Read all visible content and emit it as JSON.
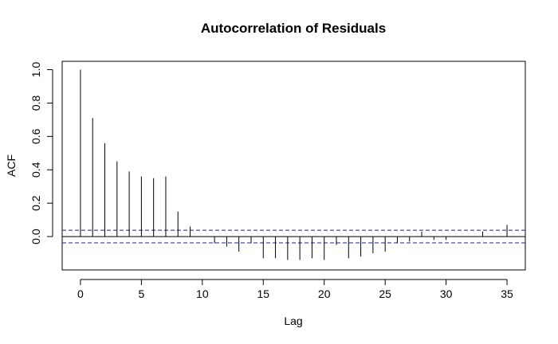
{
  "chart_data": {
    "type": "bar",
    "title": "Autocorrelation of Residuals",
    "xlabel": "Lag",
    "ylabel": "ACF",
    "xlim": [
      -1.5,
      36.5
    ],
    "ylim": [
      -0.2,
      1.05
    ],
    "x_ticks": [
      0,
      5,
      10,
      15,
      20,
      25,
      30,
      35
    ],
    "y_ticks": [
      0.0,
      0.2,
      0.4,
      0.6,
      0.8,
      1.0
    ],
    "y_tick_labels": [
      "0.0",
      "0.2",
      "0.4",
      "0.6",
      "0.8",
      "1.0"
    ],
    "confidence_bound": 0.038,
    "lags": [
      0,
      1,
      2,
      3,
      4,
      5,
      6,
      7,
      8,
      9,
      10,
      11,
      12,
      13,
      14,
      15,
      16,
      17,
      18,
      19,
      20,
      21,
      22,
      23,
      24,
      25,
      26,
      27,
      28,
      29,
      30,
      31,
      32,
      33,
      34,
      35
    ],
    "values": [
      1.0,
      0.71,
      0.56,
      0.45,
      0.39,
      0.36,
      0.35,
      0.36,
      0.15,
      0.06,
      0.0,
      -0.04,
      -0.06,
      -0.09,
      -0.04,
      -0.13,
      -0.13,
      -0.14,
      -0.14,
      -0.13,
      -0.14,
      -0.05,
      -0.13,
      -0.12,
      -0.1,
      -0.09,
      -0.04,
      -0.03,
      0.03,
      -0.02,
      -0.02,
      0.0,
      0.0,
      0.03,
      0.0,
      0.07
    ],
    "grid": false,
    "colors": {
      "bars": "#000000",
      "confidence_lines": "#1f1f8f",
      "zero_line": "#000000"
    }
  }
}
